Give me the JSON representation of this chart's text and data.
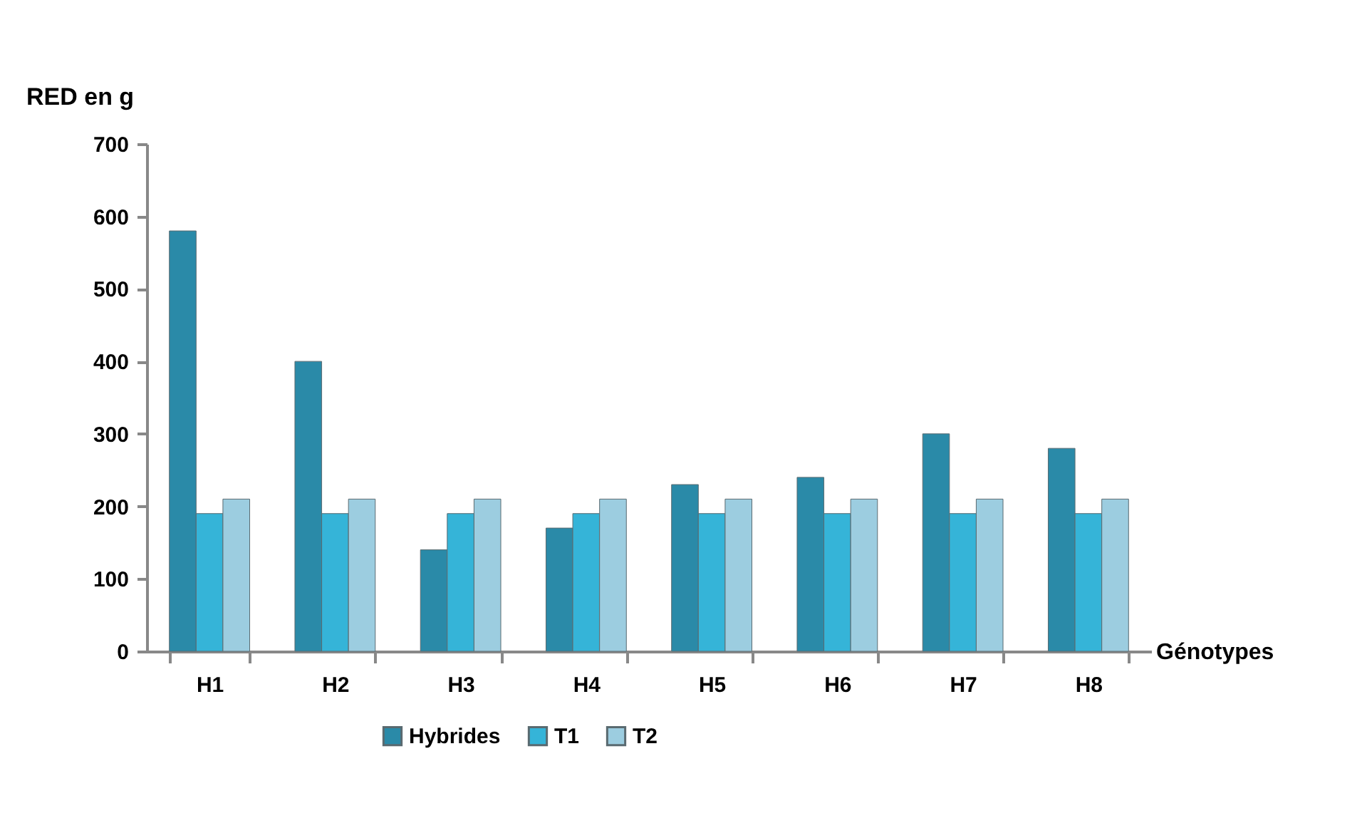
{
  "chart_data": {
    "type": "bar",
    "ylabel": "RED en g",
    "xlabel": "Génotypes",
    "categories": [
      "H1",
      "H2",
      "H3",
      "H4",
      "H5",
      "H6",
      "H7",
      "H8"
    ],
    "series": [
      {
        "name": "Hybrides",
        "color": "#2a8aa8",
        "values": [
          580,
          400,
          140,
          170,
          230,
          240,
          300,
          280
        ]
      },
      {
        "name": "T1",
        "color": "#35b4d8",
        "values": [
          190,
          190,
          190,
          190,
          190,
          190,
          190,
          190
        ]
      },
      {
        "name": "T2",
        "color": "#9ccde0",
        "values": [
          210,
          210,
          210,
          210,
          210,
          210,
          210,
          210
        ]
      }
    ],
    "ylim": [
      0,
      700
    ],
    "yticks": [
      0,
      100,
      200,
      300,
      400,
      500,
      600,
      700
    ],
    "grid": false,
    "legend": "bottom"
  }
}
